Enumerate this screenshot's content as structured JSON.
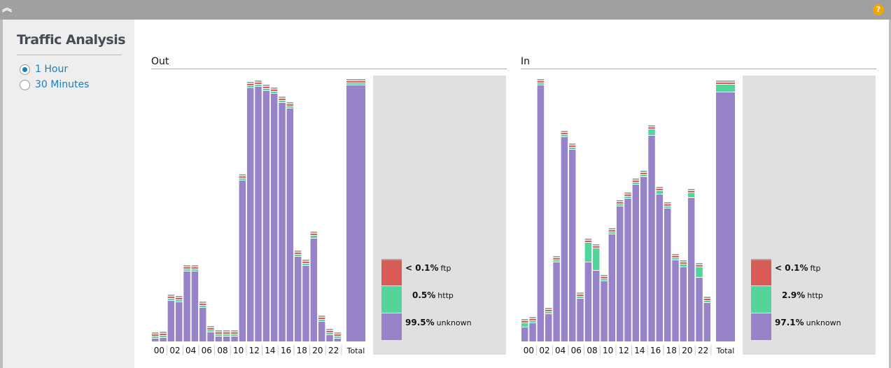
{
  "header": {
    "collapse_icon": "double-chevron-up-icon",
    "help_icon": "question-circle-icon",
    "help_label": "?"
  },
  "sidebar": {
    "title": "Traffic Analysis",
    "options": [
      {
        "label": "1 Hour",
        "selected": true
      },
      {
        "label": "30 Minutes",
        "selected": false
      }
    ]
  },
  "colors": {
    "unknown": "#9683c8",
    "http": "#52d49a",
    "ftp": "#d95b55",
    "cap": "#a9a9a9",
    "legend_bg": "#e0e0e0"
  },
  "chart_data": [
    {
      "type": "bar",
      "stacked": true,
      "title": "Out",
      "categories": [
        "00",
        "01",
        "02",
        "03",
        "04",
        "05",
        "06",
        "07",
        "08",
        "09",
        "10",
        "11",
        "12",
        "13",
        "14",
        "15",
        "16",
        "17",
        "18",
        "19",
        "20",
        "21",
        "22",
        "23"
      ],
      "tick_labels": [
        "00",
        "02",
        "04",
        "06",
        "08",
        "10",
        "12",
        "14",
        "16",
        "18",
        "20",
        "22"
      ],
      "total_label": "Total",
      "series": [
        {
          "name": "unknown",
          "values": [
            4,
            5,
            58,
            56,
            100,
            100,
            48,
            13,
            7,
            7,
            7,
            230,
            362,
            364,
            358,
            354,
            341,
            333,
            121,
            108,
            147,
            28,
            9,
            4
          ],
          "total": 366
        },
        {
          "name": "http",
          "values": [
            1,
            1,
            1,
            1,
            1,
            1,
            1,
            1,
            1,
            1,
            1,
            1,
            1,
            1,
            1,
            1,
            1,
            1,
            1,
            1,
            3,
            1,
            1,
            1
          ],
          "total": 2
        },
        {
          "name": "ftp",
          "values": [
            0,
            0,
            0,
            0,
            0,
            0,
            0,
            0,
            0,
            0,
            0,
            0,
            0,
            0,
            0,
            0,
            0,
            0,
            0,
            0,
            0,
            0,
            0,
            0
          ],
          "total": 0
        }
      ],
      "legend": [
        {
          "pct": "< 0.1%",
          "name": "ftp"
        },
        {
          "pct": "0.5%",
          "name": "http"
        },
        {
          "pct": "99.5%",
          "name": "unknown"
        }
      ]
    },
    {
      "type": "bar",
      "stacked": true,
      "title": "In",
      "categories": [
        "00",
        "01",
        "02",
        "03",
        "04",
        "05",
        "06",
        "07",
        "08",
        "09",
        "10",
        "11",
        "12",
        "13",
        "14",
        "15",
        "16",
        "17",
        "18",
        "19",
        "20",
        "21",
        "22",
        "23"
      ],
      "tick_labels": [
        "00",
        "02",
        "04",
        "06",
        "08",
        "10",
        "12",
        "14",
        "16",
        "18",
        "20",
        "22"
      ],
      "total_label": "Total",
      "series": [
        {
          "name": "unknown",
          "values": [
            20,
            26,
            366,
            39,
            113,
            292,
            274,
            61,
            113,
            101,
            86,
            153,
            193,
            204,
            224,
            235,
            294,
            210,
            190,
            116,
            106,
            205,
            91,
            55
          ],
          "total": 356
        },
        {
          "name": "http",
          "values": [
            5,
            1,
            1,
            1,
            1,
            1,
            1,
            1,
            27,
            31,
            1,
            1,
            1,
            1,
            1,
            1,
            8,
            4,
            1,
            1,
            3,
            6,
            14,
            1
          ],
          "total": 10
        },
        {
          "name": "ftp",
          "values": [
            0,
            0,
            0,
            0,
            0,
            0,
            0,
            0,
            0,
            0,
            0,
            0,
            0,
            0,
            0,
            0,
            0,
            0,
            0,
            0,
            0,
            0,
            0,
            0
          ],
          "total": 0
        }
      ],
      "legend": [
        {
          "pct": "< 0.1%",
          "name": "ftp"
        },
        {
          "pct": "2.9%",
          "name": "http"
        },
        {
          "pct": "97.1%",
          "name": "unknown"
        }
      ]
    }
  ]
}
